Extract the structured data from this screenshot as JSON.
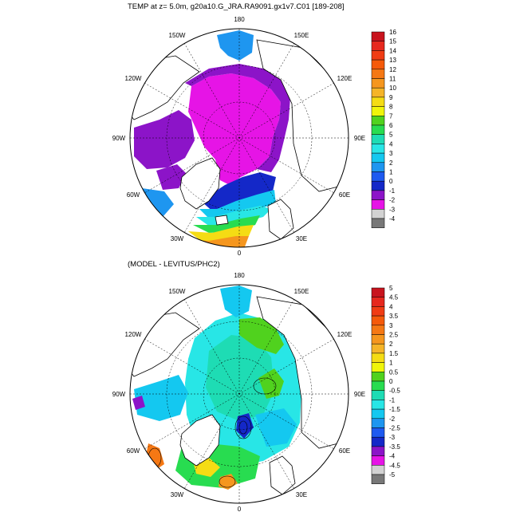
{
  "panels": [
    {
      "title": "TEMP at z=   5.0m, g20a10.G_JRA.RA9091.gx1v7.C01 [189-208]",
      "longitude_labels": [
        "180",
        "150E",
        "120E",
        "90E",
        "60E",
        "30E",
        "0",
        "30W",
        "60W",
        "90W",
        "120W",
        "150W"
      ],
      "colorbar": {
        "labels": [
          "16",
          "15",
          "14",
          "13",
          "12",
          "11",
          "10",
          "9",
          "8",
          "7",
          "6",
          "5",
          "4",
          "3",
          "2",
          "1",
          "0",
          "-1",
          "-2",
          "-3",
          "-4"
        ],
        "colors": [
          "#c8141e",
          "#e6281e",
          "#f03c14",
          "#f55a0a",
          "#f57814",
          "#f5961e",
          "#f5b428",
          "#f5dc14",
          "#f0f50a",
          "#50d21e",
          "#28dc50",
          "#1edcb4",
          "#28e6e6",
          "#14c8f0",
          "#1e96f0",
          "#1e5af0",
          "#1428c8",
          "#8c14c8",
          "#e614e6",
          "#d2d2d2",
          "#787878"
        ]
      }
    },
    {
      "title": "(MODEL - LEVITUS/PHC2)",
      "longitude_labels": [
        "180",
        "150E",
        "120E",
        "90E",
        "60E",
        "30E",
        "0",
        "30W",
        "60W",
        "90W",
        "120W",
        "150W"
      ],
      "colorbar": {
        "labels": [
          "5",
          "4.5",
          "4",
          "3.5",
          "3",
          "2.5",
          "2",
          "1.5",
          "1",
          "0.5",
          "0",
          "-0.5",
          "-1",
          "-1.5",
          "-2",
          "-2.5",
          "-3",
          "-3.5",
          "-4",
          "-4.5",
          "-5"
        ],
        "colors": [
          "#c8141e",
          "#e6281e",
          "#f03c14",
          "#f55a0a",
          "#f57814",
          "#f5961e",
          "#f5b428",
          "#f5dc14",
          "#f0f50a",
          "#50d21e",
          "#28dc50",
          "#1edcb4",
          "#28e6e6",
          "#14c8f0",
          "#1e96f0",
          "#1e5af0",
          "#1428c8",
          "#8c14c8",
          "#e614e6",
          "#d2d2d2",
          "#787878"
        ]
      }
    }
  ],
  "palette": {
    "magenta": "#e614e6",
    "purple": "#8c14c8",
    "blue": "#1e5af0",
    "cyan": "#28e6e6",
    "teal": "#1edcb4",
    "green": "#28dc50",
    "yellow": "#f5dc14",
    "orange": "#f5961e",
    "land": "#ffffff"
  }
}
